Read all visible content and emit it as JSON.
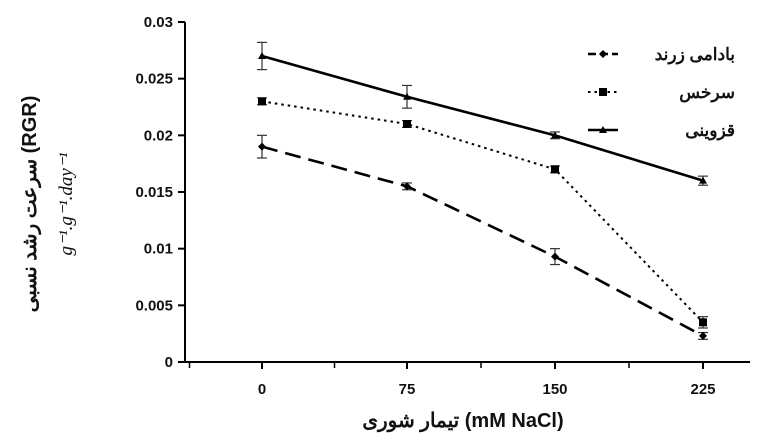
{
  "chart_data": {
    "type": "line",
    "x": [
      0,
      75,
      150,
      225
    ],
    "x_tick_labels": [
      "0",
      "75",
      "150",
      "225"
    ],
    "y_tick_labels": [
      "0",
      "0.005",
      "0.01",
      "0.015",
      "0.02",
      "0.025",
      "0.03"
    ],
    "ylim": [
      0,
      0.03
    ],
    "xlabel": "تیمار شوری (mM NaCl)",
    "ylabel": "سرعت رشد نسبی (RGR)",
    "yunit": "g⁻¹.g⁻¹.day⁻¹",
    "grid": false,
    "legend_position": "top-right",
    "series": [
      {
        "name": "بادامی زرند",
        "style": "dashed",
        "marker": "diamond",
        "values": [
          0.019,
          0.0155,
          0.0093,
          0.0023
        ],
        "errors": [
          0.001,
          0.0003,
          0.0007,
          0.0003
        ]
      },
      {
        "name": "سرخس",
        "style": "dotted",
        "marker": "square",
        "values": [
          0.023,
          0.021,
          0.017,
          0.0035
        ],
        "errors": [
          0.0003,
          0.0003,
          0.0003,
          0.0005
        ]
      },
      {
        "name": "قزوینی",
        "style": "solid",
        "marker": "triangle",
        "values": [
          0.027,
          0.0234,
          0.02,
          0.016
        ],
        "errors": [
          0.0012,
          0.001,
          0.0003,
          0.0004
        ]
      }
    ]
  }
}
